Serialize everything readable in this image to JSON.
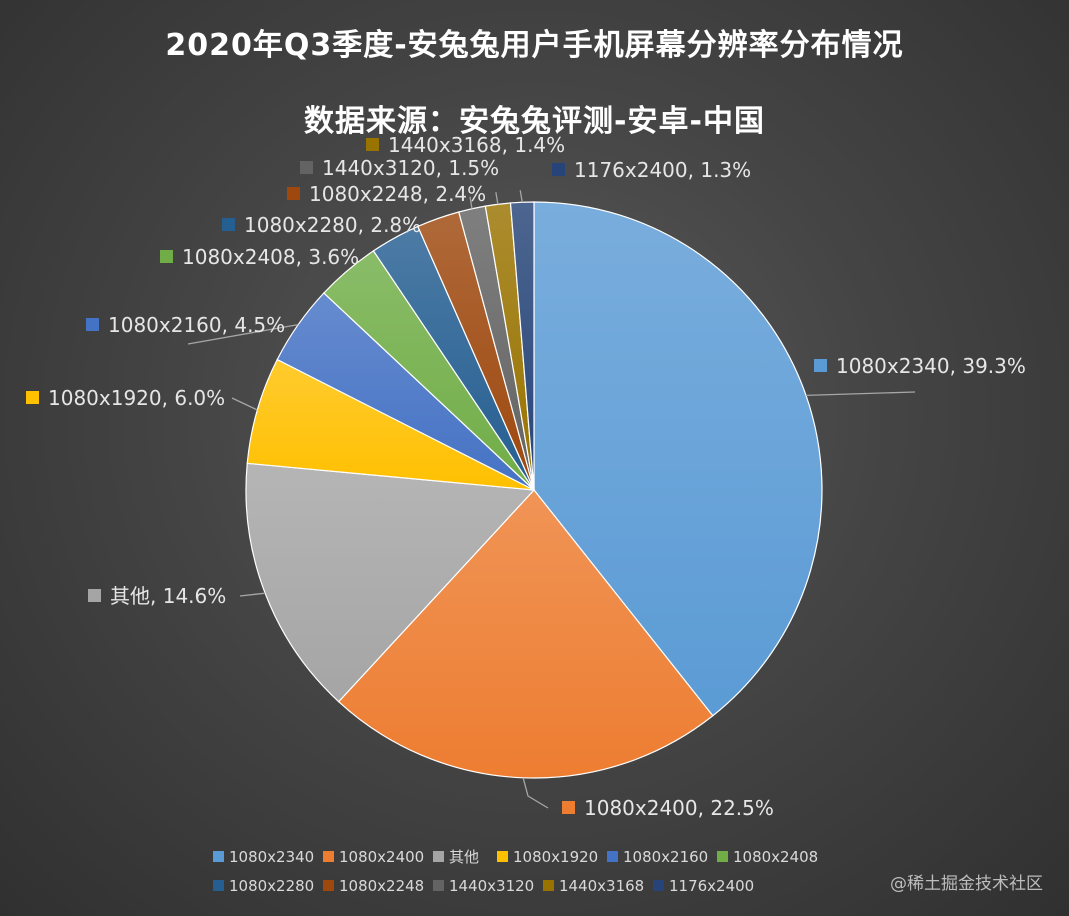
{
  "chart_data": {
    "type": "pie",
    "title": "2020年Q3季度-安兔兔用户手机屏幕分辨率分布情况",
    "subtitle": "数据来源：安兔兔评测-安卓-中国",
    "slices": [
      {
        "label": "1080x2340",
        "value": 39.3,
        "display": "39.3%",
        "color": "#5b9bd5"
      },
      {
        "label": "1080x2400",
        "value": 22.5,
        "display": "22.5%",
        "color": "#ed7d31"
      },
      {
        "label": "其他",
        "value": 14.6,
        "display": "14.6%",
        "color": "#a5a5a5"
      },
      {
        "label": "1080x1920",
        "value": 6.0,
        "display": "6.0%",
        "color": "#ffc000"
      },
      {
        "label": "1080x2160",
        "value": 4.5,
        "display": "4.5%",
        "color": "#4472c4"
      },
      {
        "label": "1080x2408",
        "value": 3.6,
        "display": "3.6%",
        "color": "#70ad47"
      },
      {
        "label": "1080x2280",
        "value": 2.8,
        "display": "2.8%",
        "color": "#255e91"
      },
      {
        "label": "1080x2248",
        "value": 2.4,
        "display": "2.4%",
        "color": "#9e480e"
      },
      {
        "label": "1440x3120",
        "value": 1.5,
        "display": "1.5%",
        "color": "#636363"
      },
      {
        "label": "1440x3168",
        "value": 1.4,
        "display": "1.4%",
        "color": "#997300"
      },
      {
        "label": "1176x2400",
        "value": 1.3,
        "display": "1.3%",
        "color": "#264478"
      }
    ],
    "legend_position": "bottom"
  },
  "watermark": "@稀土掘金技术社区"
}
